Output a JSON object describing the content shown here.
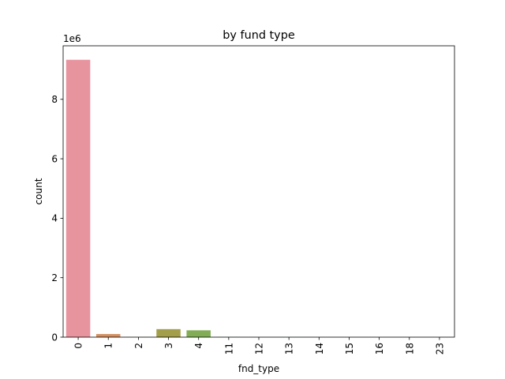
{
  "chart_data": {
    "type": "bar",
    "title": "by fund type",
    "xlabel": "fnd_type",
    "ylabel": "count",
    "y_offset_text": "1e6",
    "categories": [
      "0",
      "1",
      "2",
      "3",
      "4",
      "11",
      "12",
      "13",
      "14",
      "15",
      "16",
      "18",
      "23"
    ],
    "values": [
      9330000,
      105000,
      5000,
      270000,
      230000,
      4000,
      3000,
      2000,
      2000,
      1000,
      1000,
      1000,
      1000
    ],
    "bar_colors": [
      "#e8949f",
      "#d49060",
      "#bb9e5a",
      "#a39e4a",
      "#82ad56",
      "#5aaf74",
      "#5aae8c",
      "#5aab9e",
      "#5aa6ae",
      "#5aa0bf",
      "#8a9ad6",
      "#b693d9",
      "#dc8fc9"
    ],
    "ylim": [
      0,
      9800000
    ],
    "yticks": [
      0,
      2000000,
      4000000,
      6000000,
      8000000
    ],
    "ytick_labels": [
      "0",
      "2",
      "4",
      "6",
      "8"
    ],
    "xtick_rotation": "vertical",
    "grid": false,
    "legend": "none"
  }
}
